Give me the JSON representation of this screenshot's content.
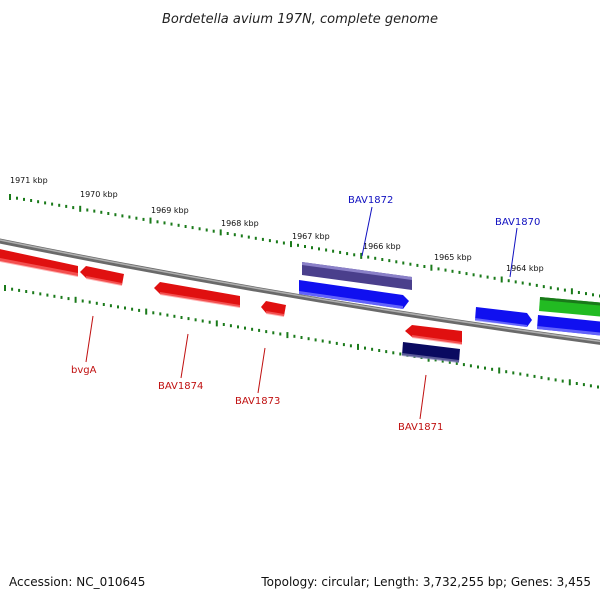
{
  "title": "Bordetella avium 197N, complete genome",
  "footer": {
    "accession": "Accession: NC_010645",
    "topology": "Topology: circular; Length: 3,732,255 bp; Genes: 3,455"
  },
  "kbp_labels": [
    "1971 kbp",
    "1970 kbp",
    "1969 kbp",
    "1968 kbp",
    "1967 kbp",
    "1966 kbp",
    "1965 kbp",
    "1964 kbp"
  ],
  "colors": {
    "forward_cds": "#1010f0",
    "reverse_cds": "#e01010",
    "dark_forward": "#4a3f8c",
    "dark_reverse": "#0a0a60",
    "green_feature": "#22bb22",
    "tick_green": "#1a7a1a",
    "backbone": "#888888",
    "label_blue": "#1010c0",
    "label_red": "#c01010"
  },
  "gene_labels": {
    "bav1872": "BAV1872",
    "bav1870": "BAV1870",
    "bvga": "bvgA",
    "bav1874": "BAV1874",
    "bav1873": "BAV1873",
    "bav1871": "BAV1871"
  }
}
